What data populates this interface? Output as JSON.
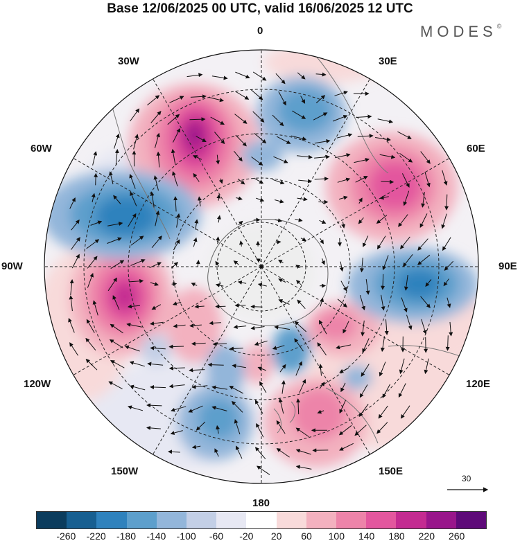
{
  "title": "Base 12/06/2025 00 UTC, valid 16/06/2025 12 UTC",
  "brand": "MODES",
  "brand_mark": "©",
  "longitude_labels": {
    "top": "0",
    "e30": "30E",
    "e60": "60E",
    "e90": "90E",
    "e120": "120E",
    "e150": "150E",
    "bottom": "180",
    "w150": "150W",
    "w120": "120W",
    "w90": "90W",
    "w60": "60W",
    "w30": "30W"
  },
  "vector_reference": {
    "value": "30"
  },
  "colorbar": {
    "colors": [
      "#0b3c5d",
      "#175f91",
      "#2f82bd",
      "#5d9fcc",
      "#93b6da",
      "#c3cfe6",
      "#e7e8f3",
      "#ffffff",
      "#f8dada",
      "#f3b1bf",
      "#ed84a9",
      "#e3579e",
      "#c42b91",
      "#99168b",
      "#5e0a79"
    ],
    "ticks": [
      "-260",
      "-220",
      "-180",
      "-140",
      "-100",
      "-60",
      "-20",
      "20",
      "60",
      "100",
      "140",
      "180",
      "220",
      "260"
    ]
  },
  "map": {
    "projection": "south polar stereographic",
    "field": "geopotential height anomaly",
    "anomaly_centers": [
      {
        "name": "positive-anomaly-south-atlantic",
        "sign": "positive"
      },
      {
        "name": "positive-anomaly-indian-ocean",
        "sign": "positive"
      },
      {
        "name": "positive-anomaly-southeast-pacific",
        "sign": "positive"
      },
      {
        "name": "positive-anomaly-tasman-sea",
        "sign": "positive"
      },
      {
        "name": "negative-anomaly-drake-passage",
        "sign": "negative"
      },
      {
        "name": "negative-anomaly-south-of-australia",
        "sign": "negative"
      },
      {
        "name": "negative-anomaly-weddell",
        "sign": "negative"
      },
      {
        "name": "negative-anomaly-ross-sea",
        "sign": "negative"
      }
    ]
  }
}
